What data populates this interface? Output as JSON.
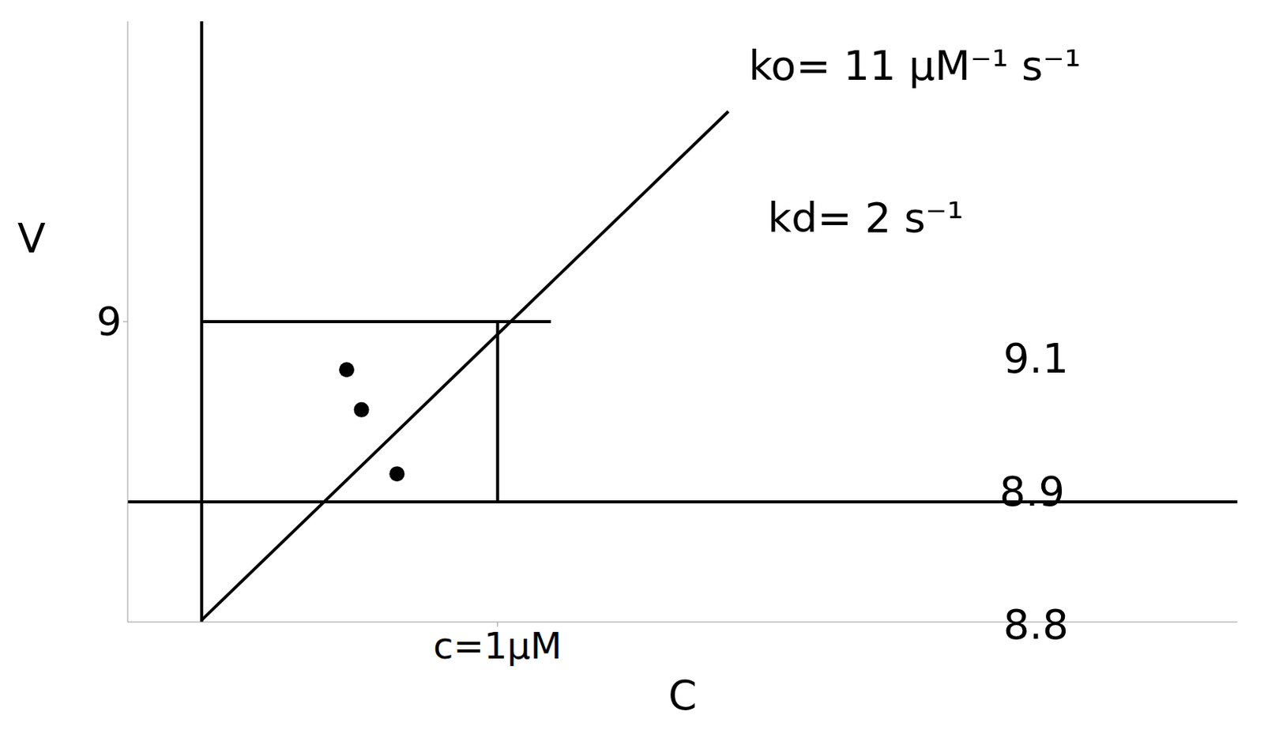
{
  "chart_data": {
    "type": "scatter",
    "x_label": "C",
    "y_label": "V",
    "xlim": [
      -0.25,
      3.5
    ],
    "ylim": [
      -6,
      24
    ],
    "xticks": [
      {
        "value": 1,
        "label": "c=1μM"
      }
    ],
    "yticks": [
      9
    ],
    "grid": false,
    "annotations": [
      "ko= 11 μM⁻¹ s⁻¹",
      "kd= 2 s⁻¹",
      "9.1",
      "8.9",
      "8.8"
    ],
    "series": [
      {
        "type": "line",
        "color": "#000000",
        "x": [
          0,
          1.78
        ],
        "values": [
          -5.9,
          19.5
        ]
      },
      {
        "type": "line",
        "color": "#000000",
        "x": [
          0,
          1.18
        ],
        "values": [
          9,
          9
        ]
      },
      {
        "type": "line",
        "color": "#000000",
        "x": [
          1,
          1
        ],
        "values": [
          9,
          0
        ]
      },
      {
        "type": "scatter",
        "color": "#000000",
        "marker": "circle",
        "x": [
          0.49,
          0.54,
          0.66
        ],
        "values": [
          6.6,
          4.6,
          1.4
        ]
      }
    ]
  }
}
